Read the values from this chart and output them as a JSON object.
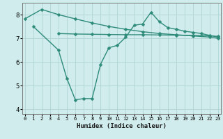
{
  "line1_x": [
    0,
    2,
    4,
    6,
    8,
    10,
    12,
    14,
    16,
    18,
    20,
    22,
    23
  ],
  "line1_y": [
    7.82,
    8.22,
    8.0,
    7.82,
    7.65,
    7.5,
    7.38,
    7.28,
    7.2,
    7.15,
    7.1,
    7.05,
    7.0
  ],
  "line2_x": [
    4,
    6,
    8,
    10,
    12,
    14,
    16,
    18,
    20,
    22,
    23
  ],
  "line2_y": [
    7.2,
    7.18,
    7.17,
    7.16,
    7.15,
    7.15,
    7.14,
    7.13,
    7.12,
    7.1,
    7.08
  ],
  "line3_x": [
    1,
    4,
    5,
    6,
    7,
    8,
    9,
    10,
    11,
    12,
    13,
    14,
    15,
    16,
    17,
    18,
    19,
    20,
    21,
    22,
    23
  ],
  "line3_y": [
    7.5,
    6.5,
    5.3,
    4.4,
    4.45,
    4.45,
    5.9,
    6.6,
    6.7,
    7.05,
    7.55,
    7.6,
    8.1,
    7.7,
    7.45,
    7.38,
    7.3,
    7.25,
    7.2,
    7.12,
    7.05
  ],
  "color": "#2e8b7a",
  "bg_color": "#d0ecec",
  "grid_color": "#b0d4d4",
  "xlabel": "Humidex (Indice chaleur)",
  "ylim": [
    3.8,
    8.5
  ],
  "xlim": [
    -0.3,
    23.3
  ],
  "yticks": [
    4,
    5,
    6,
    7,
    8
  ],
  "xticks": [
    0,
    1,
    2,
    3,
    4,
    5,
    6,
    7,
    8,
    9,
    10,
    11,
    12,
    13,
    14,
    15,
    16,
    17,
    18,
    19,
    20,
    21,
    22,
    23
  ],
  "xtick_labels": [
    "0",
    "1",
    "2",
    "3",
    "4",
    "5",
    "6",
    "7",
    "8",
    "9",
    "10",
    "11",
    "12",
    "13",
    "14",
    "15",
    "16",
    "17",
    "18",
    "19",
    "20",
    "21",
    "22",
    "23"
  ],
  "linewidth": 1.0,
  "markersize": 2.5
}
